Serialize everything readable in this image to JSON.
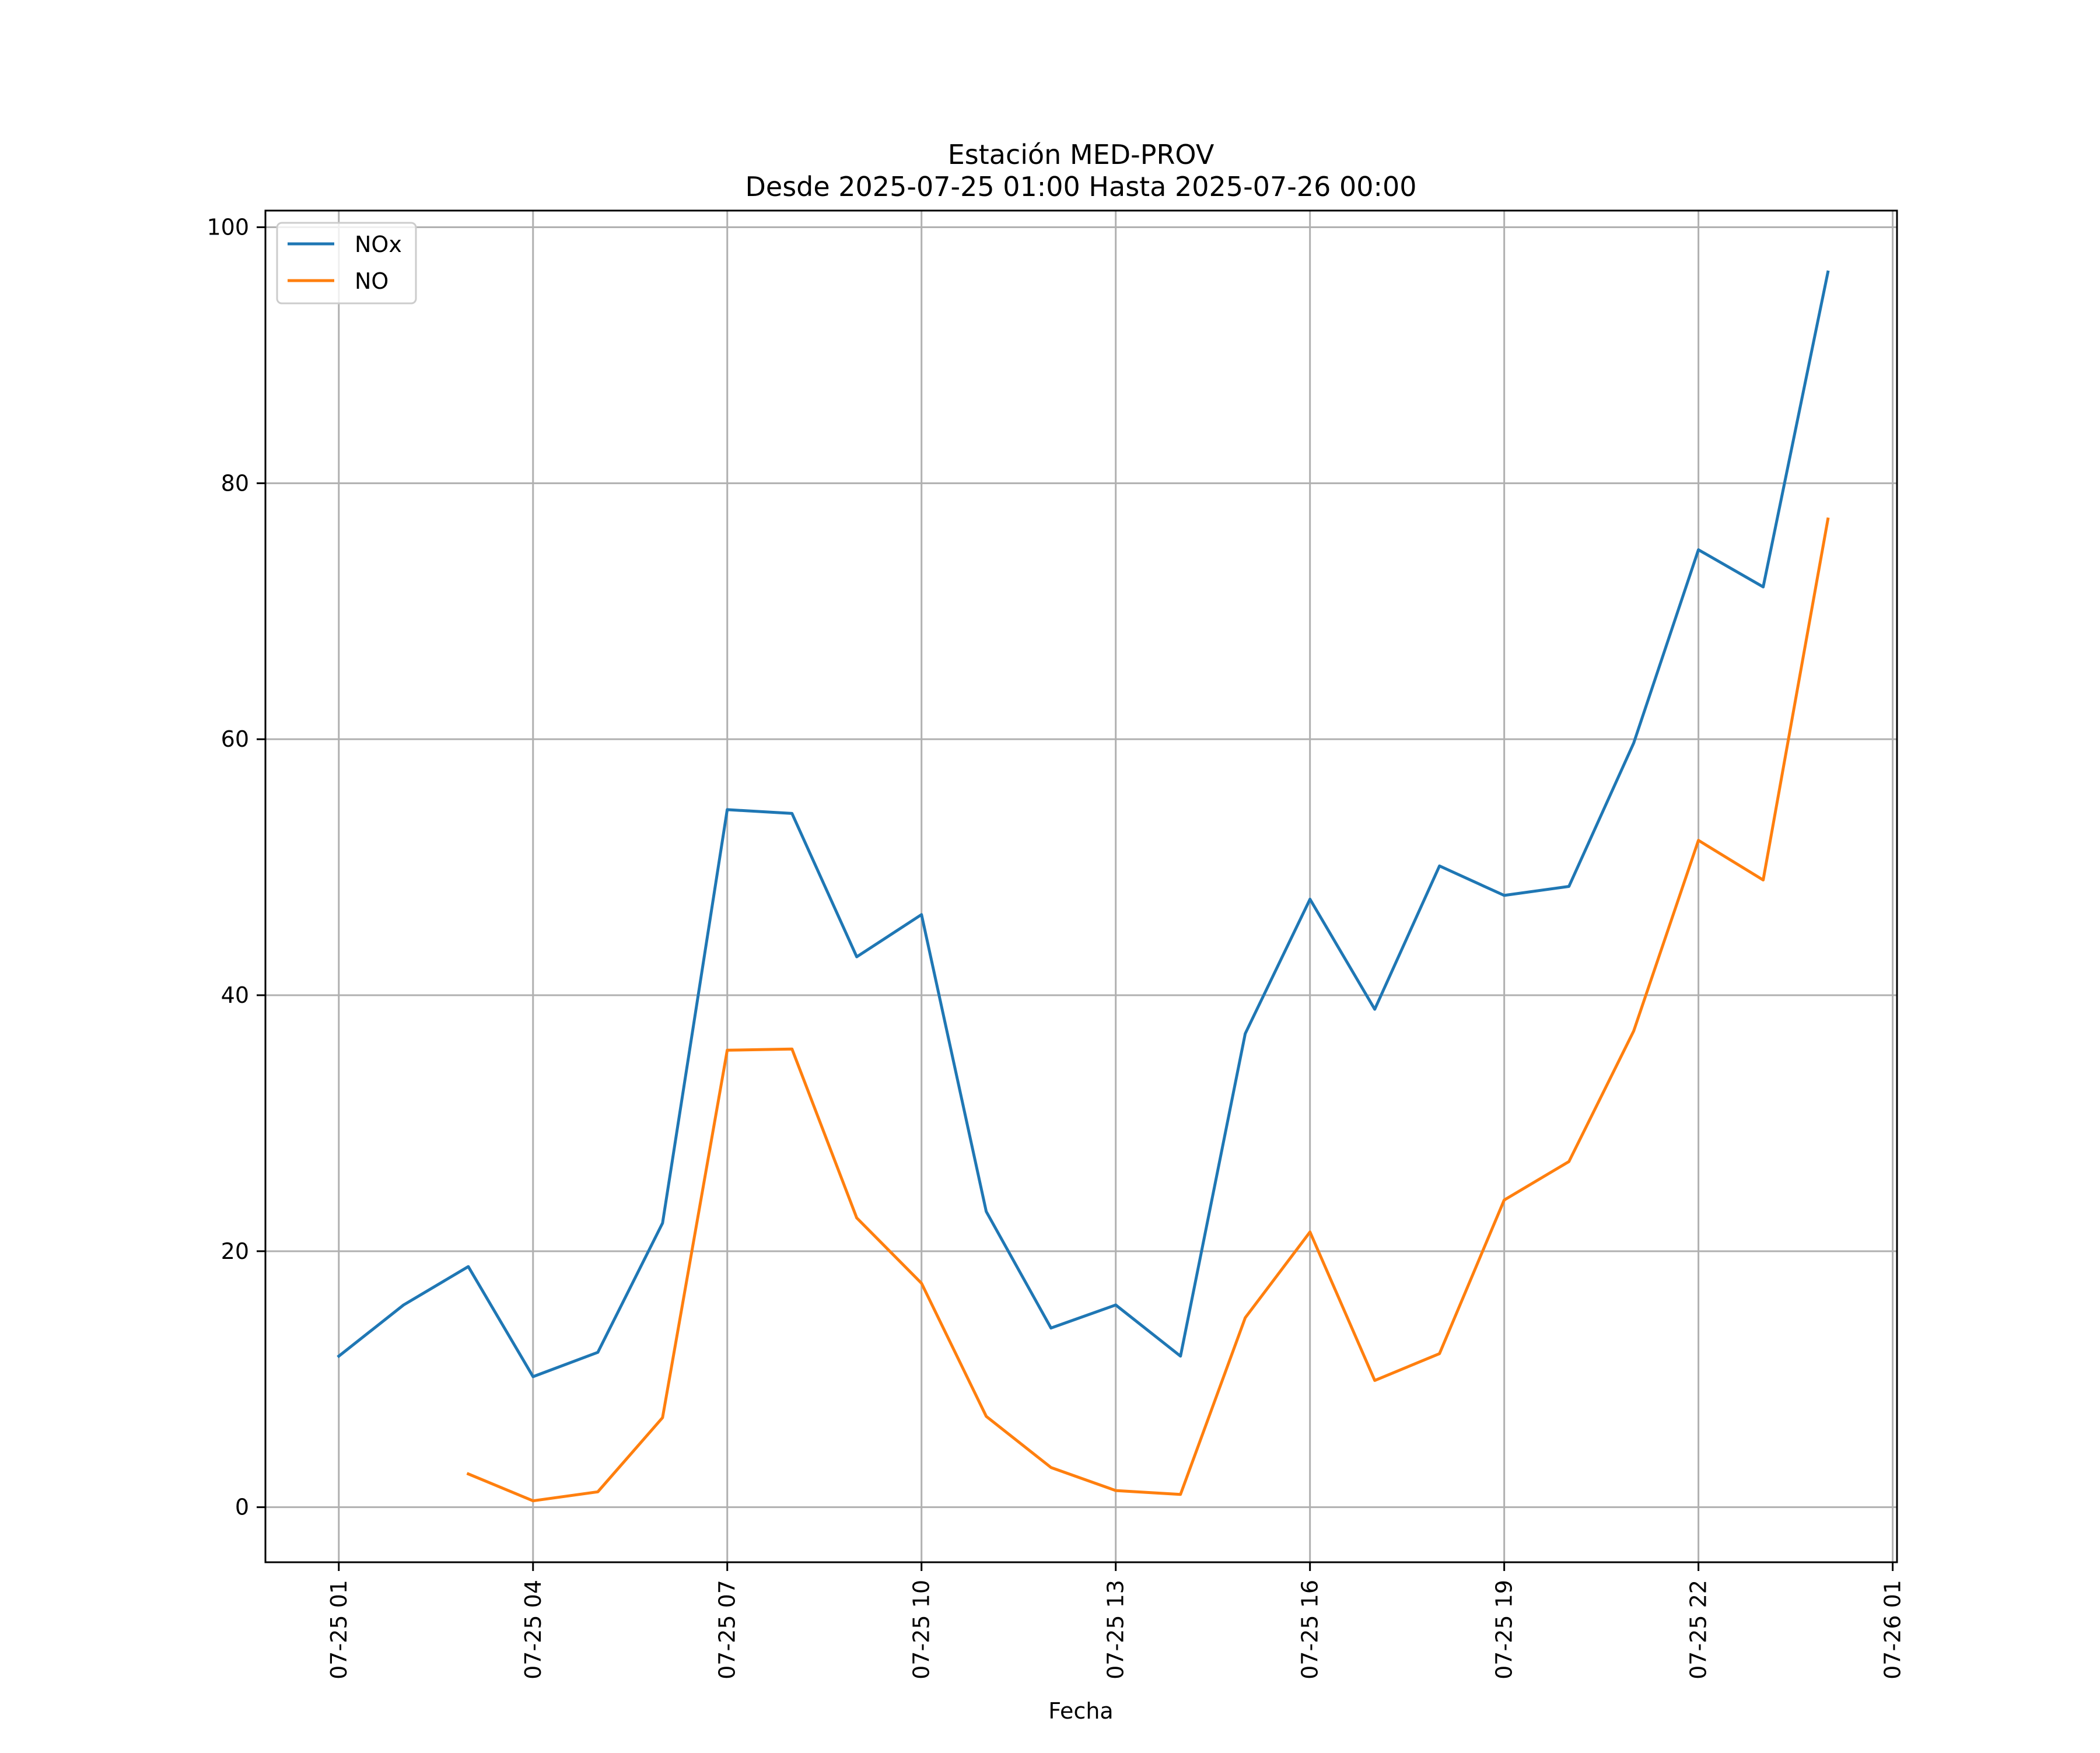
{
  "chart_data": {
    "type": "line",
    "title": "Estación MED-PROV",
    "subtitle": "Desde 2025-07-25 01:00 Hasta 2025-07-26 00:00",
    "xlabel": "Fecha",
    "ylabel": "",
    "x": [
      "2025-07-25 01:00",
      "2025-07-25 02:00",
      "2025-07-25 03:00",
      "2025-07-25 04:00",
      "2025-07-25 05:00",
      "2025-07-25 06:00",
      "2025-07-25 07:00",
      "2025-07-25 08:00",
      "2025-07-25 09:00",
      "2025-07-25 10:00",
      "2025-07-25 11:00",
      "2025-07-25 12:00",
      "2025-07-25 13:00",
      "2025-07-25 14:00",
      "2025-07-25 15:00",
      "2025-07-25 16:00",
      "2025-07-25 17:00",
      "2025-07-25 18:00",
      "2025-07-25 19:00",
      "2025-07-25 20:00",
      "2025-07-25 21:00",
      "2025-07-25 22:00",
      "2025-07-25 23:00",
      "2025-07-26 00:00"
    ],
    "xlim": [
      "2025-07-24 23:52",
      "2025-07-26 01:04"
    ],
    "xticks": [
      "2025-07-25 01:00",
      "2025-07-25 04:00",
      "2025-07-25 07:00",
      "2025-07-25 10:00",
      "2025-07-25 13:00",
      "2025-07-25 16:00",
      "2025-07-25 19:00",
      "2025-07-25 22:00",
      "2025-07-26 01:00"
    ],
    "xtick_labels": [
      "07-25 01",
      "07-25 04",
      "07-25 07",
      "07-25 10",
      "07-25 13",
      "07-25 16",
      "07-25 19",
      "07-25 22",
      "07-26 01"
    ],
    "ylim": [
      -4.3,
      101.3
    ],
    "yticks": [
      0,
      20,
      40,
      60,
      80,
      100
    ],
    "ytick_labels": [
      "0",
      "20",
      "40",
      "60",
      "80",
      "100"
    ],
    "grid": true,
    "legend_position": "top-left",
    "series": [
      {
        "name": "NOx",
        "color": "#1f77b4",
        "values": [
          11.8,
          15.8,
          18.8,
          10.2,
          12.1,
          22.2,
          54.5,
          54.2,
          43.0,
          46.3,
          23.1,
          14.0,
          15.8,
          11.8,
          37.0,
          47.5,
          38.9,
          50.1,
          47.8,
          48.5,
          59.7,
          74.8,
          71.9,
          96.5
        ]
      },
      {
        "name": "NO",
        "color": "#ff7f0e",
        "values": [
          null,
          null,
          2.6,
          0.5,
          1.2,
          7.0,
          35.7,
          35.8,
          22.6,
          17.5,
          7.1,
          3.1,
          1.3,
          1.0,
          14.8,
          21.5,
          9.9,
          12.0,
          24.0,
          27.0,
          37.2,
          52.1,
          49.0,
          77.2
        ]
      }
    ]
  }
}
